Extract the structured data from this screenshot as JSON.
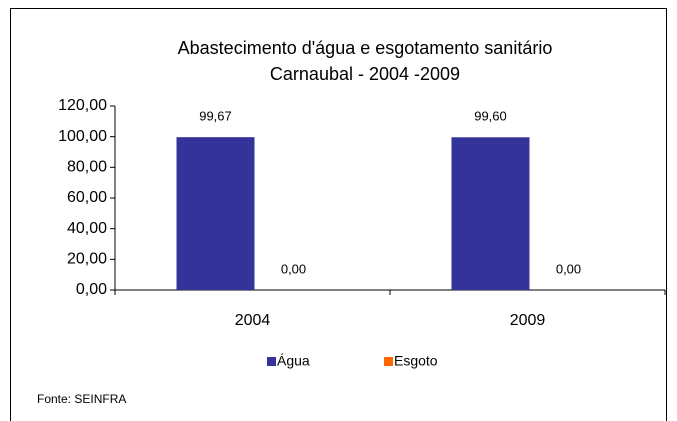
{
  "chart_data": {
    "type": "bar",
    "title": "Abastecimento d'água e esgotamento sanitário",
    "subtitle": "Carnaubal - 2004 -2009",
    "categories": [
      "2004",
      "2009"
    ],
    "series": [
      {
        "name": "Água",
        "color": "#333399",
        "values": [
          99.67,
          99.6
        ],
        "value_labels": [
          "99,67",
          "99,60"
        ]
      },
      {
        "name": "Esgoto",
        "color": "#ff6600",
        "values": [
          0,
          0
        ],
        "value_labels": [
          "0,00",
          "0,00"
        ]
      }
    ],
    "ylim": [
      0,
      120
    ],
    "yticks": [
      {
        "value": 0,
        "label": "0,00"
      },
      {
        "value": 20,
        "label": "20,00"
      },
      {
        "value": 40,
        "label": "40,00"
      },
      {
        "value": 60,
        "label": "60,00"
      },
      {
        "value": 80,
        "label": "80,00"
      },
      {
        "value": 100,
        "label": "100,00"
      },
      {
        "value": 120,
        "label": "120,00"
      }
    ],
    "grid": false,
    "legend": "bottom",
    "annotation": "Fonte: SEINFRA"
  }
}
